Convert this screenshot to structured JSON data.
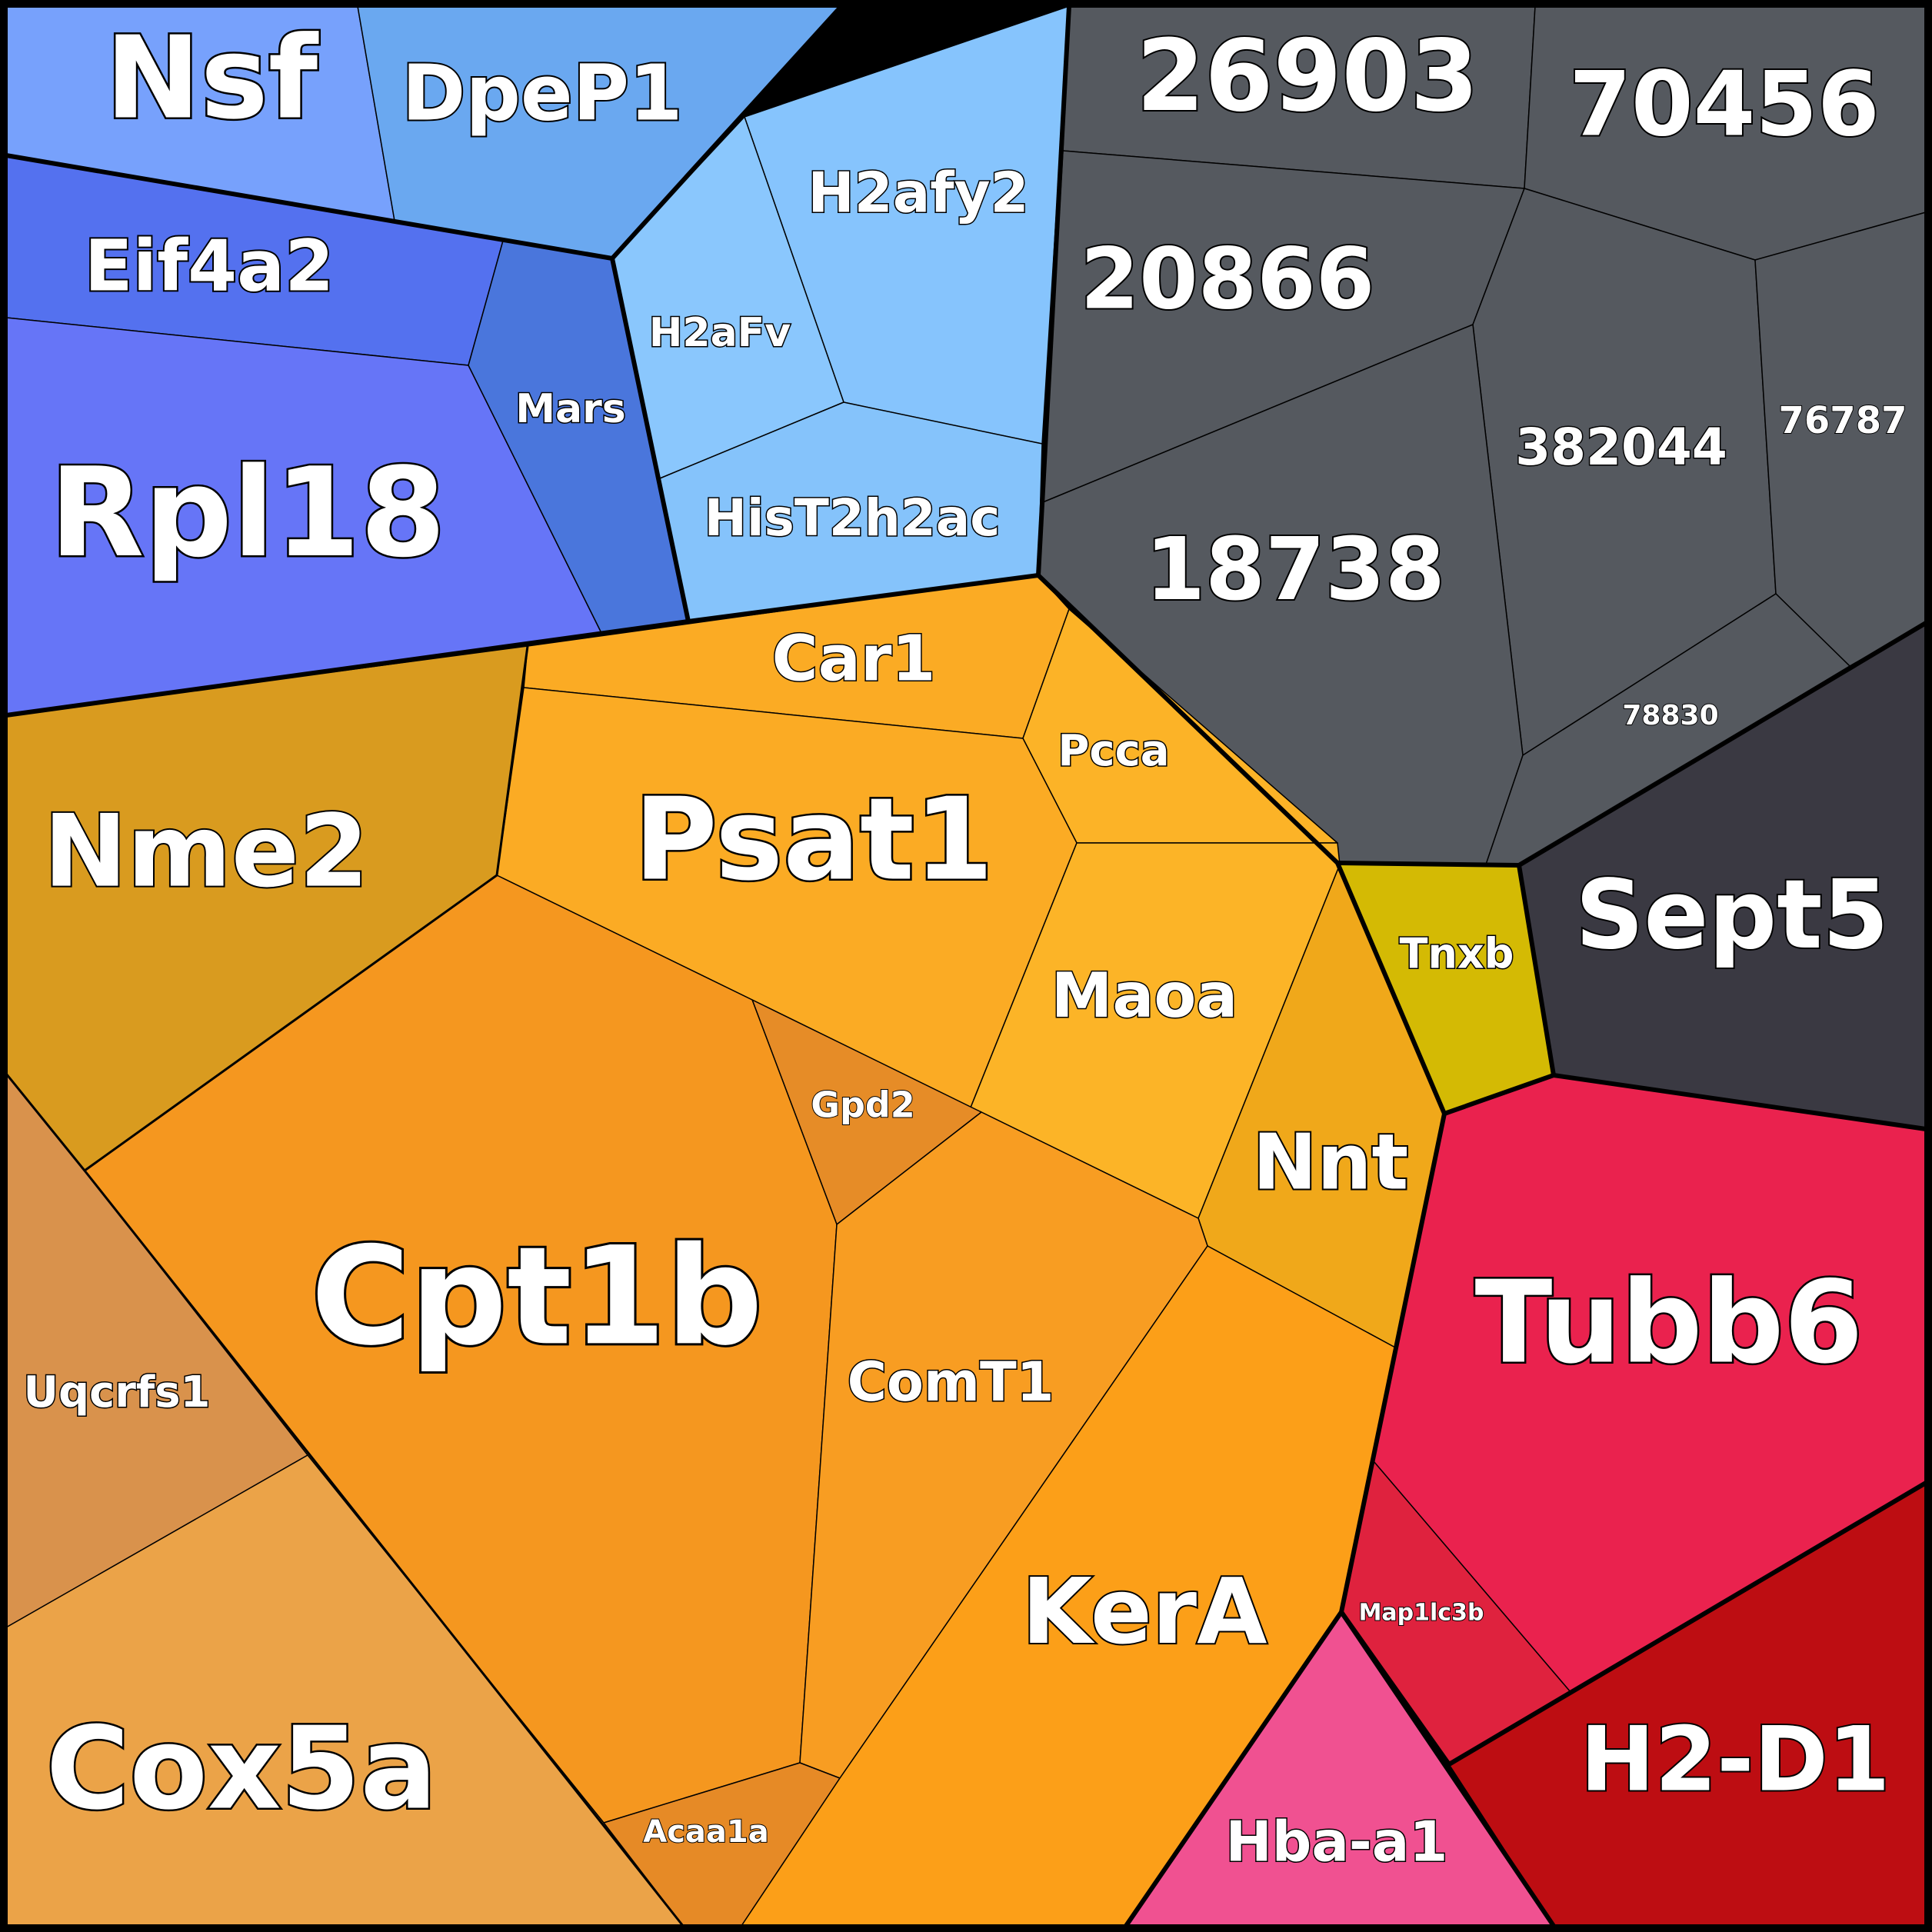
{
  "colors": {
    "blue_group": "#6ea8f2",
    "gray_group": "#555a60",
    "orange_group": "#f39a1f",
    "red_group": "#e8224e",
    "background_border": "#000000"
  },
  "cells": [
    {
      "id": "nsf",
      "label": "Nsf",
      "color": "#77a1fc"
    },
    {
      "id": "dpep1",
      "label": "DpeP1",
      "color": "#6aa8f0"
    },
    {
      "id": "eif4a2",
      "label": "Eif4a2",
      "color": "#5471ef"
    },
    {
      "id": "rpl18",
      "label": "Rpl18",
      "color": "#6675f7"
    },
    {
      "id": "mars",
      "label": "Mars",
      "color": "#4a76dc"
    },
    {
      "id": "h2afy2",
      "label": "H2afy2",
      "color": "#86c4fd"
    },
    {
      "id": "h2afv",
      "label": "H2aFv",
      "color": "#8ac7fd"
    },
    {
      "id": "hist2h2ac",
      "label": "HisT2h2ac",
      "color": "#85c3fb"
    },
    {
      "id": "c26903",
      "label": "26903",
      "color": "#55595f"
    },
    {
      "id": "c70456",
      "label": "70456",
      "color": "#55595f"
    },
    {
      "id": "c20866",
      "label": "20866",
      "color": "#55595f"
    },
    {
      "id": "c382044",
      "label": "382044",
      "color": "#55595f"
    },
    {
      "id": "c76787",
      "label": "76787",
      "color": "#55595f"
    },
    {
      "id": "c18738",
      "label": "18738",
      "color": "#55595f"
    },
    {
      "id": "c78830",
      "label": "78830",
      "color": "#55595f"
    },
    {
      "id": "sept5",
      "label": "Sept5",
      "color": "#3a3942"
    },
    {
      "id": "tnxb",
      "label": "Tnxb",
      "color": "#d4ba04"
    },
    {
      "id": "car1",
      "label": "Car1",
      "color": "#fbab24"
    },
    {
      "id": "pcca",
      "label": "Pcca",
      "color": "#fcb327"
    },
    {
      "id": "psat1",
      "label": "Psat1",
      "color": "#fbab24"
    },
    {
      "id": "nme2",
      "label": "Nme2",
      "color": "#d99b1f"
    },
    {
      "id": "maoa",
      "label": "Maoa",
      "color": "#fcb427"
    },
    {
      "id": "nnt",
      "label": "Nnt",
      "color": "#f0a81a"
    },
    {
      "id": "gpd2",
      "label": "Gpd2",
      "color": "#e68c27"
    },
    {
      "id": "cpt1b",
      "label": "Cpt1b",
      "color": "#f5971f"
    },
    {
      "id": "comt1",
      "label": "ComT1",
      "color": "#f89d22"
    },
    {
      "id": "uqcrfs1",
      "label": "Uqcrfs1",
      "color": "#d9924c"
    },
    {
      "id": "cox5a",
      "label": "Cox5a",
      "color": "#eba348"
    },
    {
      "id": "acaa1a",
      "label": "Acaa1a",
      "color": "#e68a26"
    },
    {
      "id": "kera",
      "label": "KerA",
      "color": "#fc9f18"
    },
    {
      "id": "tubb6",
      "label": "Tubb6",
      "color": "#ea224e"
    },
    {
      "id": "map1lc3b",
      "label": "Map1lc3b",
      "color": "#df223e"
    },
    {
      "id": "hba_a1",
      "label": "Hba-a1",
      "color": "#f05191"
    },
    {
      "id": "h2_d1",
      "label": "H2-D1",
      "color": "#bd0d12"
    }
  ]
}
